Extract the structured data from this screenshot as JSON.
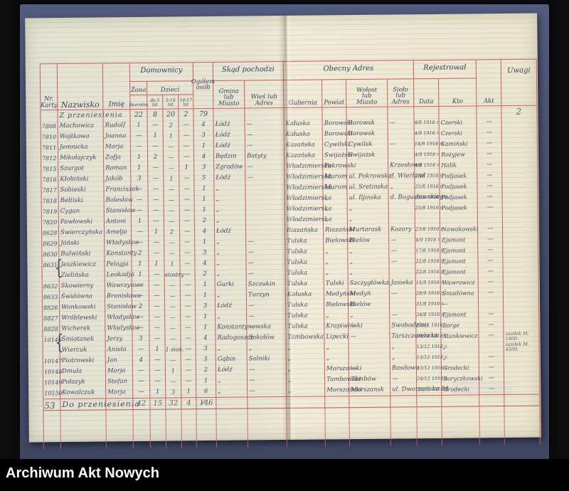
{
  "viewer": {
    "footer_label": "Archiwum Akt Nowych"
  },
  "colors": {
    "table_lines": "#c2605e",
    "ink": "#414a63",
    "pencil": "#5d6165",
    "mat_blue": "#49516f",
    "paper_left": "#e6e4d4",
    "paper_right": "#f1ebd7",
    "background": "#0c0c0c"
  },
  "register": {
    "headers": {
      "nr": "Nr.\nKarty",
      "nazwisko": "Nazwisko",
      "imie": "Imię",
      "domownicy": "Domownicy",
      "zona": "Żona",
      "dzieci": "Dzieci",
      "zona_sub": "Bezrolna",
      "dzieci_do5": "do 5\nlat",
      "dzieci_5_14": "5-14\nlat",
      "dzieci_14_17": "14-17\nlat",
      "ogolem": "Ogółem\nosób",
      "skad": "Skąd pochodzi",
      "gmina": "Gmina\nlub\nMiasto",
      "wies": "Wieś lub\nAdres",
      "obecny": "Obecny Adres",
      "gubernia": "Gubernia",
      "powiat": "Powiat",
      "wolost": "Wołost\nlub\nMiasto",
      "siolo": "Sioło\nlub\nAdres",
      "rejestrowal": "Rejestrował",
      "data": "Data",
      "kto": "Kto",
      "akt": "Akt",
      "uwagi": "Uwagi"
    },
    "rows": [
      {
        "cls": "carry",
        "nr": "",
        "nazwisko": "Z przeniesienia",
        "imie": "",
        "zona": "22",
        "d5": "8",
        "d514": "20",
        "d1417": "2",
        "ogolem": "79",
        "gmina": "",
        "wies": "",
        "gubernia": "",
        "powiat": "",
        "wolost": "",
        "siolo": "",
        "data": "",
        "kto": "",
        "akt": "",
        "uwagi": "2"
      },
      {
        "nr": "7808",
        "nazwisko": "Machowicz",
        "imie": "Rudolf",
        "zona": "1",
        "d5": "—",
        "d514": "2",
        "d1417": "—",
        "ogolem": "4",
        "gmina": "Łódź",
        "wies": "—",
        "gubernia": "Kałuska",
        "powiat": "Borowski",
        "wolost": "Borowsk",
        "siolo": "—",
        "data": "4/8 1916 r.",
        "kto": "Czerski",
        "akt": "—",
        "uwagi": ""
      },
      {
        "nr": "7810",
        "nazwisko": "Wojtkowa",
        "imie": "Joanna",
        "zona": "—",
        "d5": "1",
        "d514": "1",
        "d1417": "—",
        "ogolem": "3",
        "gmina": "Łódź",
        "wies": "—",
        "gubernia": "Kałuska",
        "powiat": "Borowski",
        "wolost": "Borowsk",
        "siolo": "",
        "data": "4/8 1916 r.",
        "kto": "Czerski",
        "akt": "—",
        "uwagi": ""
      },
      {
        "nr": "7811",
        "nazwisko": "Jemnicka",
        "imie": "Marja",
        "zona": "—",
        "d5": "—",
        "d514": "—",
        "d1417": "—",
        "ogolem": "1",
        "gmina": "Łódź",
        "wies": "—",
        "gubernia": "Kazańska",
        "powiat": "Cywilski",
        "wolost": "Cywilsk",
        "siolo": "—",
        "data": "14/8 1916 r.",
        "kto": "Kamiński",
        "akt": "—",
        "uwagi": ""
      },
      {
        "nr": "7812",
        "nazwisko": "Mikołajczyk",
        "imie": "Zofja",
        "zona": "1",
        "d5": "2",
        "d514": "—",
        "d1417": "—",
        "ogolem": "4",
        "gmina": "Będzin",
        "wies": "Batyty",
        "gubernia": "Kazańska",
        "powiat": "Swijażski",
        "wolost": "Swijażsk",
        "siolo": "",
        "data": "4/8 1916 r.",
        "kto": "Rozyjew",
        "akt": "—",
        "uwagi": ""
      },
      {
        "nr": "7815",
        "nazwisko": "Szurgot",
        "imie": "Roman",
        "zona": "1",
        "d5": "—",
        "d514": "—",
        "d1417": "1",
        "ogolem": "3",
        "gmina": "Zgradów",
        "wies": "—",
        "gubernia": "Włodzimierska",
        "powiat": "Pokrowski",
        "wolost": "",
        "siolo": "Krzesłowo",
        "data": "4/8 1916 r.",
        "kto": "Halik",
        "akt": "—",
        "uwagi": ""
      },
      {
        "nr": "7816",
        "nazwisko": "Kłobiński",
        "imie": "Jakób",
        "zona": "3",
        "d5": "—",
        "d514": "1",
        "d1417": "—",
        "ogolem": "5",
        "gmina": "Łódź",
        "wies": "—",
        "gubernia": "Włodzimierska",
        "powiat": "Murom",
        "wolost": "ul. Pokrowska",
        "siolo": "d. Wierland",
        "data": "25/8 1916 r.",
        "kto": "Podjasek",
        "akt": "—",
        "uwagi": ""
      },
      {
        "nr": "7817",
        "nazwisko": "Sobieski",
        "imie": "Franciszek",
        "zona": "—",
        "d5": "—",
        "d514": "—",
        "d1417": "—",
        "ogolem": "1",
        "gmina": "„",
        "wies": "",
        "gubernia": "Włodzimierska",
        "powiat": "Murom",
        "wolost": "ul. Sretinska",
        "siolo": "„",
        "data": "25/8 1916 r.",
        "kto": "Podjasek",
        "akt": "—",
        "uwagi": ""
      },
      {
        "nr": "7818",
        "nazwisko": "Bełtiski",
        "imie": "Bolesław",
        "zona": "—",
        "d5": "—",
        "d514": "—",
        "d1417": "—",
        "ogolem": "1",
        "gmina": "„",
        "wies": "",
        "gubernia": "Włodzimierska",
        "powiat": "„",
        "wolost": "ul. Iljinska",
        "siolo": "d. Bogusławskiego",
        "data": "25/8 1916 r.",
        "kto": "Podjasek",
        "akt": "—",
        "uwagi": ""
      },
      {
        "nr": "7819",
        "nazwisko": "Cygan",
        "imie": "Stanisław",
        "zona": "—",
        "d5": "—",
        "d514": "—",
        "d1417": "—",
        "ogolem": "1",
        "gmina": "„",
        "wies": "",
        "gubernia": "Włodzimierska",
        "powiat": "„",
        "wolost": "„",
        "siolo": "",
        "data": "25/8 1916 r.",
        "kto": "Podjasek",
        "akt": "—",
        "uwagi": ""
      },
      {
        "nr": "7820",
        "nazwisko": "Pawłowski",
        "imie": "Antoni",
        "zona": "1",
        "d5": "—",
        "d514": "—",
        "d1417": "—",
        "ogolem": "2",
        "gmina": "„",
        "wies": "",
        "gubernia": "Włodzimierska",
        "powiat": "„",
        "wolost": "„",
        "siolo": "",
        "data": "",
        "kto": "",
        "akt": "",
        "uwagi": ""
      },
      {
        "nr": "8628",
        "nazwisko": "Świerczyńska",
        "imie": "Amelja",
        "zona": "—",
        "d5": "1",
        "d514": "2",
        "d1417": "—",
        "ogolem": "4",
        "gmina": "Łódź",
        "wies": "",
        "gubernia": "Riazańska",
        "powiat": "Riazański",
        "wolost": "Murtarask",
        "siolo": "Kozary",
        "data": "23/8 1916 r.",
        "kto": "Nowakowski",
        "akt": "—",
        "uwagi": ""
      },
      {
        "nr": "8629",
        "nazwisko": "Jóński",
        "imie": "Władysław",
        "zona": "—",
        "d5": "—",
        "d514": "—",
        "d1417": "—",
        "ogolem": "1",
        "gmina": "„",
        "wies": "—",
        "gubernia": "Tulska",
        "powiat": "Bielowski",
        "wolost": "Bielów",
        "siolo": "—",
        "data": "4/9 1916 r.",
        "kto": "Ejsmont",
        "akt": "—",
        "uwagi": ""
      },
      {
        "nr": "8630",
        "nazwisko": "Bulwiński",
        "imie": "Konstanty",
        "zona": "2",
        "d5": "—",
        "d514": "—",
        "d1417": "—",
        "ogolem": "3",
        "gmina": "„",
        "wies": "—",
        "gubernia": "Tulska",
        "powiat": "„",
        "wolost": "„",
        "siolo": "—",
        "data": "17/8 1916 r.",
        "kto": "Ejsmont",
        "akt": "—",
        "uwagi": ""
      },
      {
        "nr": "8631",
        "brace": true,
        "nazwisko": "Jeszkiewicz",
        "imie": "Pelagja",
        "zona": "1",
        "d5": "1",
        "d514": "1",
        "d1417": "—",
        "ogolem": "4",
        "gmina": "„",
        "wies": "—",
        "gubernia": "Tulska",
        "powiat": "„",
        "wolost": "„",
        "siolo": "—",
        "data": "22/8 1916 r.",
        "kto": "Ejsmont",
        "akt": "—",
        "uwagi": ""
      },
      {
        "nr": "",
        "nazwisko": "Zielińska",
        "imie": "Leokadja",
        "zona": "1",
        "d5": "—",
        "d514": "siostry",
        "d1417": "—",
        "ogolem": "2",
        "gmina": "„",
        "wies": "—",
        "gubernia": "Tulska",
        "powiat": "„",
        "wolost": "„",
        "siolo": "",
        "data": "22/8 1916 r.",
        "kto": "Ejsmont",
        "akt": "—",
        "uwagi": ""
      },
      {
        "nr": "8632",
        "nazwisko": "Skowierny",
        "imie": "Wawrzyniec",
        "zona": "—",
        "d5": "—",
        "d514": "—",
        "d1417": "—",
        "ogolem": "1",
        "gmina": "Gurki",
        "wies": "Szczukin",
        "gubernia": "Tulska",
        "powiat": "Tulski",
        "wolost": "Szczygłówka",
        "siolo": "Jasieka",
        "data": "15/9 1916 r.",
        "kto": "Wawrowicz",
        "akt": "—",
        "uwagi": ""
      },
      {
        "nr": "8633",
        "nazwisko": "Świdówna",
        "imie": "Bronisława",
        "zona": "—",
        "d5": "—",
        "d514": "—",
        "d1417": "—",
        "ogolem": "1",
        "gmina": "„",
        "wies": "Turzyn",
        "gubernia": "Kałuska",
        "powiat": "Medyński",
        "wolost": "Medyń",
        "siolo": "—",
        "data": "28/9 1916 r.",
        "kto": "Śniadówna",
        "akt": "—",
        "uwagi": ""
      },
      {
        "nr": "8826",
        "nazwisko": "Wonkowski",
        "imie": "Stanisław",
        "zona": "2",
        "d5": "—",
        "d514": "—",
        "d1417": "—",
        "ogolem": "3",
        "gmina": "Łódź",
        "wies": "—",
        "gubernia": "Tulska",
        "powiat": "Bielowski",
        "wolost": "Bielów",
        "siolo": "",
        "data": "31/8 1916 r.",
        "kto": "—",
        "akt": "",
        "uwagi": ""
      },
      {
        "nr": "8827",
        "nazwisko": "Wróblewski",
        "imie": "Władysław",
        "zona": "—",
        "d5": "—",
        "d514": "—",
        "d1417": "—",
        "ogolem": "1",
        "gmina": "„",
        "wies": "—",
        "gubernia": "Tulska",
        "powiat": "„",
        "wolost": "„",
        "siolo": "—",
        "data": "24/8 1916 r.",
        "kto": "Ejsmont",
        "akt": "—",
        "uwagi": ""
      },
      {
        "nr": "8828",
        "nazwisko": "Wicherek",
        "imie": "Władysław",
        "zona": "—",
        "d5": "—",
        "d514": "—",
        "d1417": "—",
        "ogolem": "1",
        "gmina": "Konstantynowska",
        "wies": "—",
        "gubernia": "Tulska",
        "powiat": "Krapiwiński",
        "wolost": "—",
        "siolo": "Swobodzino",
        "data": "29/11 1916 r.",
        "kto": "Lorge",
        "akt": "—",
        "uwagi": ""
      },
      {
        "nr": "10146",
        "brace": true,
        "nazwisko": "Śmiotanek",
        "imie": "Jerzy",
        "zona": "3",
        "d5": "—",
        "d514": "—",
        "d1417": "—",
        "ogolem": "4",
        "gmina": "Radogoszcz",
        "wies": "Sokołów",
        "gubernia": "Tambowska",
        "powiat": "Lipecki",
        "wolost": "—",
        "siolo": "Tarszczonówka",
        "data": "10/12 1916 r.",
        "kto": "Stankiewicz",
        "akt": "—",
        "uwagi": "zasiłek M. 1400."
      },
      {
        "nr": "",
        "nazwisko": "Wiercuk",
        "imie": "Aniela",
        "zona": "—",
        "d5": "1",
        "d514": "1 sios.",
        "d1417": "—",
        "ogolem": "3",
        "gmina": "„",
        "wies": "„",
        "gubernia": "„",
        "powiat": "„",
        "wolost": "",
        "siolo": "„",
        "data": "13/12 1916 r.",
        "kto": "„",
        "akt": "",
        "uwagi": "zasiłek M. 4500."
      },
      {
        "nr": "10147",
        "nazwisko": "Piotrowski",
        "imie": "Jan",
        "zona": "4",
        "d5": "—",
        "d514": "—",
        "d1417": "—",
        "ogolem": "5",
        "gmina": "Gąbin",
        "wies": "Solniki",
        "gubernia": "„",
        "powiat": "„",
        "wolost": "",
        "siolo": "„",
        "data": "13/12 1916 r.",
        "kto": "„",
        "akt": "—",
        "uwagi": ""
      },
      {
        "nr": "10148",
        "nazwisko": "Dmula",
        "imie": "Marja",
        "zona": "—",
        "d5": "—",
        "d514": "1",
        "d1417": "—",
        "ogolem": "2",
        "gmina": "Łódź",
        "wies": "—",
        "gubernia": "„",
        "powiat": "Morszański",
        "wolost": "—",
        "siolo": "Basiłowo",
        "data": "13/12 1916 r.",
        "kto": "Grodecki",
        "akt": "—",
        "uwagi": ""
      },
      {
        "nr": "10149",
        "nazwisko": "Połazyk",
        "imie": "Stefan",
        "zona": "—",
        "d5": "—",
        "d514": "—",
        "d1417": "—",
        "ogolem": "1",
        "gmina": "„",
        "wies": "—",
        "gubernia": "„",
        "powiat": "Tambowski",
        "wolost": "Tambów",
        "siolo": "—",
        "data": "24/12 1916 r.",
        "kto": "Boryczkowski",
        "akt": "—",
        "uwagi": ""
      },
      {
        "nr": "10150",
        "nazwisko": "Kowalczuk",
        "imie": "Marja",
        "zona": "—",
        "d5": "1",
        "d514": "3",
        "d1417": "1",
        "ogolem": "6",
        "gmina": "„",
        "wies": "—",
        "gubernia": "„",
        "powiat": "Morszański",
        "wolost": "Morszansk",
        "siolo": "ul. Dworzańska 34",
        "data": "23/12 1916 r.",
        "kto": "Grodecki",
        "akt": "—",
        "uwagi": ""
      },
      {
        "cls": "total",
        "nr": "",
        "nazwisko": "Do przeniesienia",
        "imie": "",
        "zona": "42",
        "d5": "15",
        "d514": "32",
        "d1417": "4",
        "ogolem": "146",
        "gmina": "",
        "wies": "",
        "gubernia": "",
        "powiat": "",
        "wolost": "",
        "siolo": "",
        "data": "",
        "kto": "",
        "akt": "",
        "uwagi": ""
      }
    ],
    "margin_notes": {
      "page_number": "53",
      "check_mark": "✓"
    }
  }
}
